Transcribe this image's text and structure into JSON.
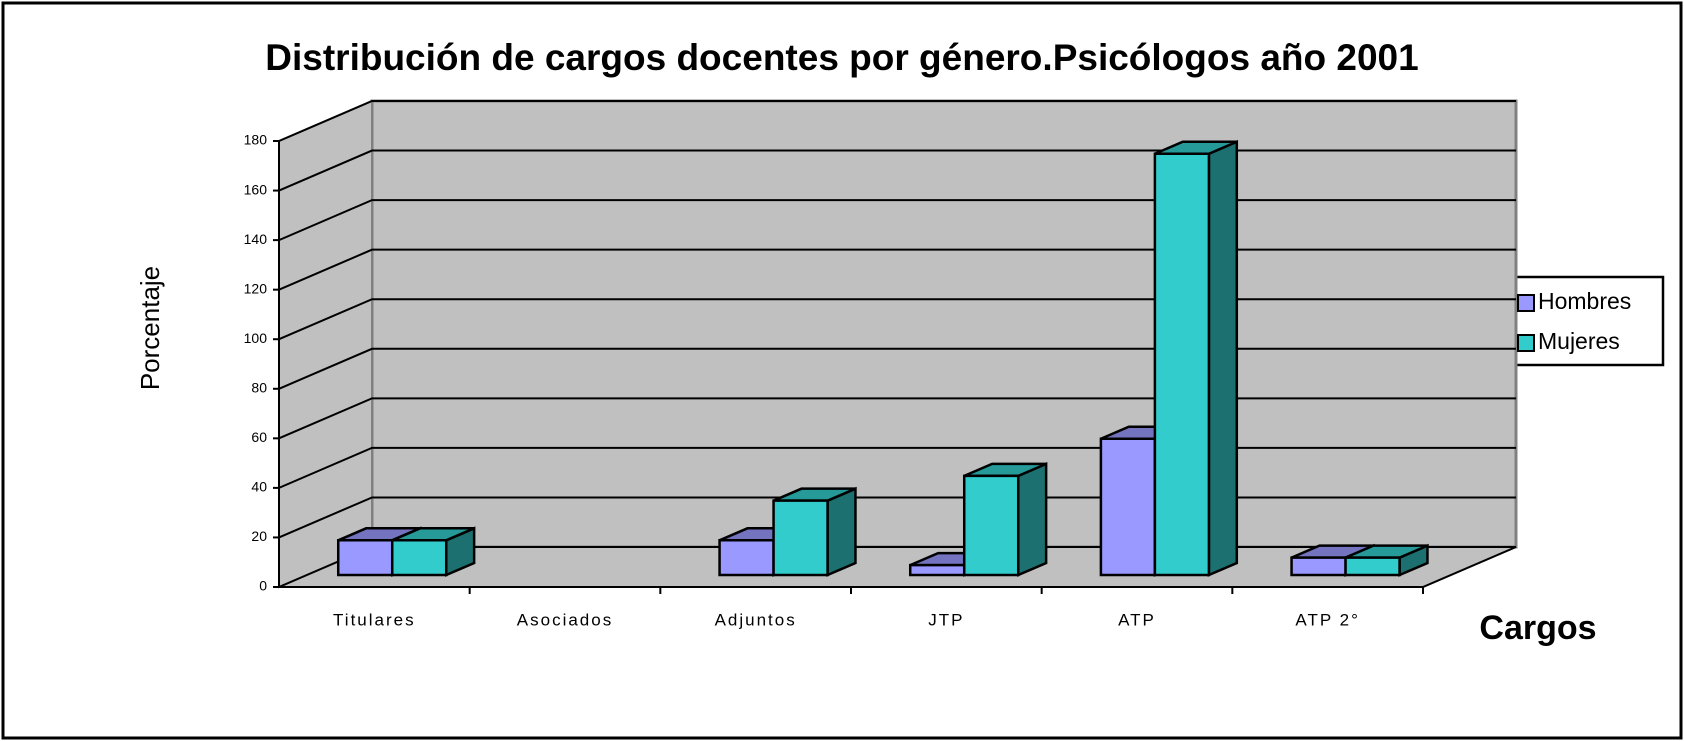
{
  "chart_data": {
    "type": "bar3d",
    "title": "Distribución de cargos docentes por género.Psicólogos año 2001",
    "y_label": "Porcentaje",
    "x_label": "Cargos",
    "categories": [
      "Titulares",
      "Asociados",
      "Adjuntos",
      "JTP",
      "ATP",
      "ATP 2°"
    ],
    "series": [
      {
        "name": "Hombres",
        "color": "#9999ff",
        "values": [
          14,
          null,
          14,
          4,
          55,
          7
        ]
      },
      {
        "name": "Mujeres",
        "color": "#33cccc",
        "values": [
          14,
          null,
          30,
          40,
          170,
          7
        ]
      }
    ],
    "ylim": [
      0,
      180
    ],
    "yticks": [
      0,
      20,
      40,
      60,
      80,
      100,
      120,
      140,
      160,
      180
    ],
    "grid": true,
    "legend": "right"
  }
}
